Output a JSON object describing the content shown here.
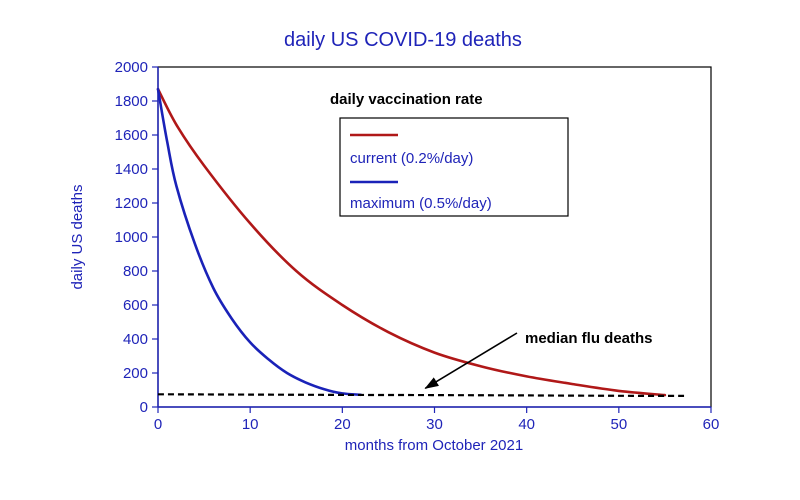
{
  "chart_data": {
    "type": "line",
    "title": "daily US COVID-19 deaths",
    "xlabel": "months from October 2021",
    "ylabel": "daily US deaths",
    "xlim": [
      0,
      60
    ],
    "ylim": [
      0,
      2000
    ],
    "x_ticks": [
      0,
      10,
      20,
      30,
      40,
      50,
      60
    ],
    "y_ticks": [
      0,
      200,
      400,
      600,
      800,
      1000,
      1200,
      1400,
      1600,
      1800,
      2000
    ],
    "legend_title": "daily vaccination rate",
    "series": [
      {
        "name": "current (0.2%/day)",
        "color": "#b01818",
        "dash": "solid",
        "x": [
          0,
          2,
          5,
          10,
          15,
          20,
          25,
          30,
          35,
          40,
          45,
          50,
          55
        ],
        "y": [
          1870,
          1660,
          1420,
          1080,
          800,
          600,
          440,
          320,
          240,
          180,
          135,
          95,
          70
        ]
      },
      {
        "name": "maximum (0.5%/day)",
        "color": "#1a22b8",
        "dash": "solid",
        "x": [
          0,
          1,
          2,
          4,
          6,
          8,
          10,
          12,
          14,
          16,
          18,
          20,
          22
        ],
        "y": [
          1870,
          1560,
          1300,
          960,
          700,
          520,
          380,
          280,
          200,
          145,
          105,
          80,
          72
        ]
      },
      {
        "name": "median flu deaths",
        "color": "#000000",
        "dash": "dashed",
        "x": [
          0,
          10,
          20,
          30,
          40,
          50,
          57.5
        ],
        "y": [
          75,
          73,
          71,
          70,
          68,
          66,
          65
        ]
      }
    ],
    "annotations": [
      {
        "text": "median flu deaths",
        "arrow_to": {
          "x": 29,
          "y": 75
        }
      }
    ]
  }
}
